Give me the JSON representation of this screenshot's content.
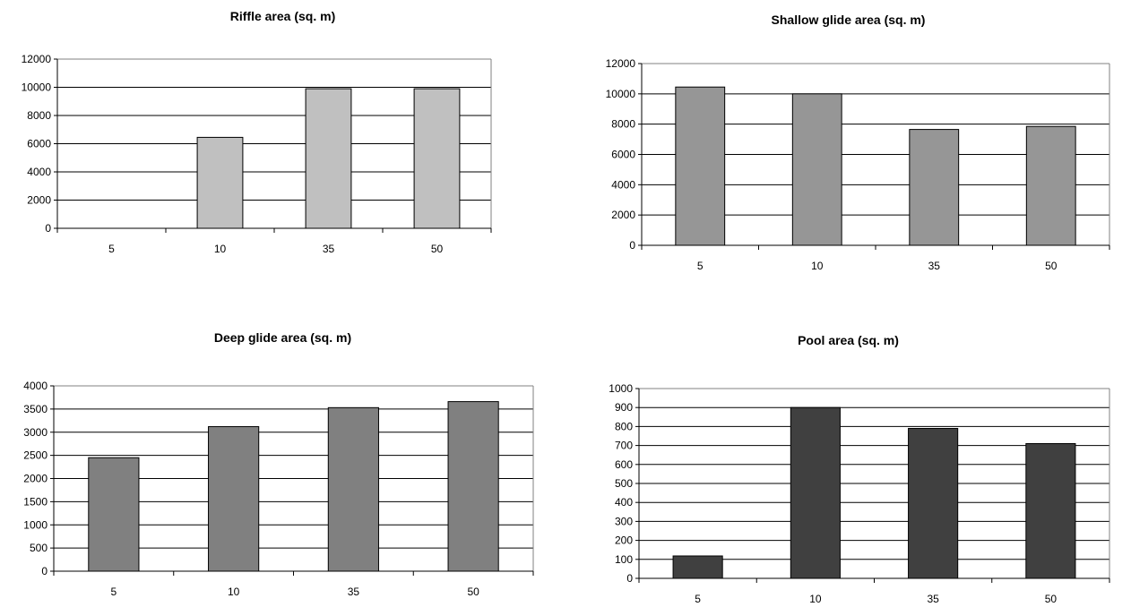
{
  "chart_data": [
    {
      "type": "bar",
      "title": "Riffle area (sq. m)",
      "categories": [
        "5",
        "10",
        "35",
        "50"
      ],
      "values": [
        0,
        6450,
        9900,
        9900
      ],
      "ylim": [
        0,
        12000
      ],
      "yticks": [
        0,
        2000,
        4000,
        6000,
        8000,
        10000,
        12000
      ],
      "grid": true,
      "bar_color": "#c0c0c0",
      "xlabel": "",
      "ylabel": ""
    },
    {
      "type": "bar",
      "title": "Shallow glide area (sq. m)",
      "categories": [
        "5",
        "10",
        "35",
        "50"
      ],
      "values": [
        10450,
        10000,
        7650,
        7850
      ],
      "ylim": [
        0,
        12000
      ],
      "yticks": [
        0,
        2000,
        4000,
        6000,
        8000,
        10000,
        12000
      ],
      "grid": true,
      "bar_color": "#969696",
      "xlabel": "",
      "ylabel": ""
    },
    {
      "type": "bar",
      "title": "Deep glide area (sq. m)",
      "categories": [
        "5",
        "10",
        "35",
        "50"
      ],
      "values": [
        2450,
        3120,
        3530,
        3660
      ],
      "ylim": [
        0,
        4000
      ],
      "yticks": [
        0,
        500,
        1000,
        1500,
        2000,
        2500,
        3000,
        3500,
        4000
      ],
      "grid": true,
      "bar_color": "#808080",
      "xlabel": "",
      "ylabel": ""
    },
    {
      "type": "bar",
      "title": "Pool area (sq. m)",
      "categories": [
        "5",
        "10",
        "35",
        "50"
      ],
      "values": [
        118,
        900,
        790,
        710
      ],
      "ylim": [
        0,
        1000
      ],
      "yticks": [
        0,
        100,
        200,
        300,
        400,
        500,
        600,
        700,
        800,
        900,
        1000
      ],
      "grid": true,
      "bar_color": "#404040",
      "xlabel": "",
      "ylabel": ""
    }
  ]
}
